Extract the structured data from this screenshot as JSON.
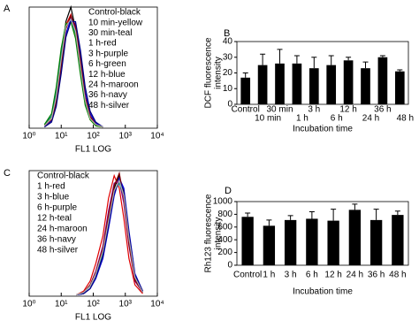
{
  "chart_data": [
    {
      "type": "histogram",
      "label": "A",
      "xscale": "log",
      "xlim": [
        1,
        10000
      ],
      "ylim": [
        0,
        100
      ],
      "xticks": [
        {
          "value": 1,
          "label": "10⁰"
        },
        {
          "value": 10,
          "label": "10¹"
        },
        {
          "value": 100,
          "label": "10²"
        },
        {
          "value": 1000,
          "label": "10³"
        },
        {
          "value": 10000,
          "label": "10⁴"
        }
      ],
      "xlabel": "FL1 LOG",
      "x": [
        3,
        5,
        7,
        10,
        14,
        20,
        28,
        40,
        56,
        80,
        120,
        200
      ],
      "series": [
        {
          "name": "Control-black",
          "color": "#000000",
          "values": [
            2,
            8,
            26,
            58,
            88,
            100,
            82,
            50,
            22,
            8,
            3,
            1
          ]
        },
        {
          "name": "10 min-yellow",
          "color": "#e0e000",
          "values": [
            2,
            9,
            28,
            60,
            86,
            92,
            76,
            46,
            20,
            7,
            2,
            1
          ]
        },
        {
          "name": "30 min-teal",
          "color": "#008080",
          "values": [
            3,
            10,
            30,
            62,
            84,
            90,
            78,
            48,
            22,
            8,
            3,
            1
          ]
        },
        {
          "name": "1 h-red",
          "color": "#e00000",
          "values": [
            2,
            7,
            24,
            55,
            85,
            94,
            80,
            52,
            24,
            9,
            3,
            1
          ]
        },
        {
          "name": "3 h-purple",
          "color": "#800080",
          "values": [
            2,
            8,
            25,
            56,
            83,
            91,
            82,
            54,
            25,
            9,
            3,
            1
          ]
        },
        {
          "name": "6 h-green",
          "color": "#008000",
          "values": [
            3,
            12,
            34,
            66,
            86,
            88,
            74,
            44,
            19,
            7,
            2,
            1
          ]
        },
        {
          "name": "12 h-blue",
          "color": "#0000e0",
          "values": [
            2,
            6,
            20,
            48,
            78,
            90,
            86,
            60,
            30,
            12,
            4,
            1
          ]
        },
        {
          "name": "24 h-maroon",
          "color": "#800000",
          "values": [
            2,
            7,
            22,
            52,
            82,
            93,
            84,
            56,
            26,
            10,
            3,
            1
          ]
        },
        {
          "name": "36 h-navy",
          "color": "#000080",
          "values": [
            1,
            5,
            18,
            45,
            75,
            88,
            88,
            64,
            34,
            14,
            5,
            1
          ]
        },
        {
          "name": "48 h-silver",
          "color": "#b0b0b0",
          "values": [
            2,
            8,
            26,
            57,
            84,
            90,
            80,
            50,
            23,
            8,
            3,
            1
          ]
        }
      ]
    },
    {
      "type": "bar",
      "label": "B",
      "ylim": [
        0,
        40
      ],
      "yticks": [
        0,
        10,
        20,
        30,
        40
      ],
      "ylabel": [
        "DCF fluorescence",
        "intensity"
      ],
      "xlabel": "Incubation time",
      "color": "#000000",
      "categories": [
        "Control",
        "10 min",
        "30 min",
        "1 h",
        "3 h",
        "6 h",
        "12 h",
        "24 h",
        "36 h",
        "48 h"
      ],
      "values": [
        17,
        25,
        26,
        26,
        23,
        25,
        28,
        23,
        30,
        21
      ],
      "errors": [
        3,
        7,
        9,
        5,
        7,
        6,
        2,
        4,
        1,
        1
      ]
    },
    {
      "type": "histogram",
      "label": "C",
      "xscale": "log",
      "xlim": [
        1,
        10000
      ],
      "ylim": [
        0,
        100
      ],
      "xticks": [
        {
          "value": 1,
          "label": "10⁰"
        },
        {
          "value": 10,
          "label": "10¹"
        },
        {
          "value": 100,
          "label": "10²"
        },
        {
          "value": 1000,
          "label": "10³"
        },
        {
          "value": 10000,
          "label": "10⁴"
        }
      ],
      "xlabel": "FL1 LOG",
      "x": [
        30,
        50,
        80,
        120,
        200,
        300,
        450,
        650,
        900,
        1300,
        2000,
        3500
      ],
      "series": [
        {
          "name": "Control-black",
          "color": "#000000",
          "values": [
            1,
            3,
            8,
            18,
            36,
            62,
            86,
            96,
            80,
            44,
            14,
            3
          ]
        },
        {
          "name": "1 h-red",
          "color": "#e00000",
          "values": [
            1,
            4,
            12,
            26,
            48,
            78,
            96,
            86,
            62,
            30,
            9,
            2
          ]
        },
        {
          "name": "3 h-blue",
          "color": "#0000e0",
          "values": [
            1,
            2,
            6,
            14,
            30,
            54,
            80,
            94,
            86,
            52,
            18,
            4
          ]
        },
        {
          "name": "6 h-purple",
          "color": "#800080",
          "values": [
            1,
            3,
            9,
            20,
            40,
            68,
            90,
            92,
            74,
            40,
            12,
            3
          ]
        },
        {
          "name": "12 h-teal",
          "color": "#008080",
          "values": [
            1,
            3,
            8,
            18,
            34,
            60,
            84,
            90,
            80,
            46,
            15,
            3
          ]
        },
        {
          "name": "24 h-maroon",
          "color": "#800000",
          "values": [
            1,
            3,
            9,
            19,
            38,
            64,
            88,
            98,
            78,
            42,
            13,
            3
          ]
        },
        {
          "name": "36 h-navy",
          "color": "#000080",
          "values": [
            1,
            2,
            6,
            15,
            32,
            56,
            82,
            92,
            84,
            50,
            17,
            4
          ]
        },
        {
          "name": "48 h-silver",
          "color": "#b0b0b0",
          "values": [
            1,
            3,
            8,
            18,
            36,
            60,
            84,
            92,
            80,
            46,
            15,
            3
          ]
        }
      ]
    },
    {
      "type": "bar",
      "label": "D",
      "ylim": [
        0,
        1000
      ],
      "yticks": [
        0,
        200,
        400,
        600,
        800,
        1000
      ],
      "ylabel": [
        "Rh123 fluorescence",
        "intensity"
      ],
      "xlabel": "Incubation time",
      "color": "#000000",
      "categories": [
        "Control",
        "1 h",
        "3 h",
        "6 h",
        "12 h",
        "24 h",
        "36 h",
        "48 h"
      ],
      "values": [
        760,
        620,
        710,
        730,
        700,
        870,
        710,
        790
      ],
      "errors": [
        60,
        90,
        70,
        110,
        180,
        90,
        170,
        60
      ]
    }
  ]
}
